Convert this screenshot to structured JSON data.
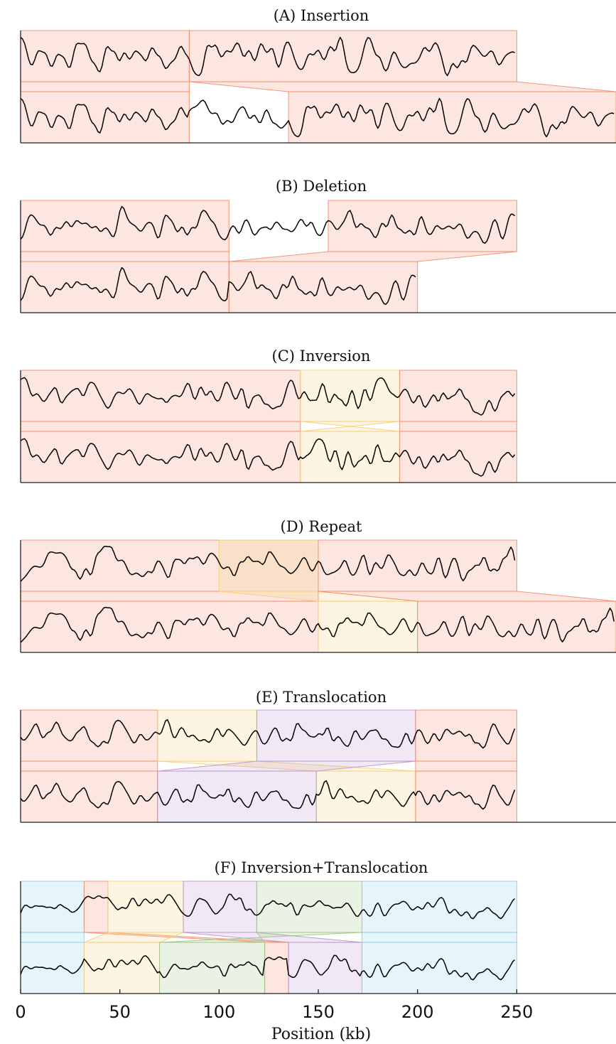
{
  "chart_data": {
    "type": "line",
    "xlabel": "Position (kb)",
    "xlim": [
      0,
      300
    ],
    "xticks": [
      0,
      50,
      100,
      150,
      200,
      250
    ],
    "colors": {
      "red": "#f08c6e",
      "yellow": "#f5cf78",
      "purple": "#b995cc",
      "green": "#9fc486",
      "blue": "#8ccbeb"
    },
    "panels": [
      {
        "title": "(A) Insertion",
        "reference_length_kb": 250,
        "query_length_kb": 300,
        "blocks": [
          {
            "color": "red",
            "ref": [
              0,
              85
            ],
            "query": [
              0,
              85
            ]
          },
          {
            "color": "red",
            "ref": [
              85,
              250
            ],
            "query": [
              135,
              300
            ]
          }
        ]
      },
      {
        "title": "(B) Deletion",
        "reference_length_kb": 250,
        "query_length_kb": 200,
        "blocks": [
          {
            "color": "red",
            "ref": [
              0,
              105
            ],
            "query": [
              0,
              105
            ]
          },
          {
            "color": "red",
            "ref": [
              155,
              250
            ],
            "query": [
              105,
              200
            ]
          }
        ]
      },
      {
        "title": "(C) Inversion",
        "reference_length_kb": 250,
        "query_length_kb": 250,
        "blocks": [
          {
            "color": "red",
            "ref": [
              0,
              141
            ],
            "query": [
              0,
              141
            ]
          },
          {
            "color": "yellow",
            "ref": [
              141,
              191
            ],
            "query": [
              141,
              191
            ],
            "inverted": true
          },
          {
            "color": "red",
            "ref": [
              191,
              250
            ],
            "query": [
              191,
              250
            ]
          }
        ]
      },
      {
        "title": "(D) Repeat",
        "reference_length_kb": 250,
        "query_length_kb": 300,
        "blocks": [
          {
            "color": "red",
            "ref": [
              0,
              150
            ],
            "query": [
              0,
              150
            ]
          },
          {
            "color": "yellow",
            "ref": [
              100,
              150
            ],
            "query": [
              150,
              200
            ]
          },
          {
            "color": "red",
            "ref": [
              150,
              250
            ],
            "query": [
              200,
              300
            ]
          }
        ]
      },
      {
        "title": "(E) Translocation",
        "reference_length_kb": 250,
        "query_length_kb": 250,
        "blocks": [
          {
            "color": "red",
            "ref": [
              0,
              69
            ],
            "query": [
              0,
              69
            ]
          },
          {
            "color": "yellow",
            "ref": [
              69,
              119
            ],
            "query": [
              149,
              199
            ]
          },
          {
            "color": "purple",
            "ref": [
              119,
              199
            ],
            "query": [
              69,
              149
            ]
          },
          {
            "color": "red",
            "ref": [
              199,
              250
            ],
            "query": [
              199,
              250
            ]
          }
        ]
      },
      {
        "title": "(F) Inversion+Translocation",
        "reference_length_kb": 250,
        "query_length_kb": 250,
        "blocks": [
          {
            "color": "blue",
            "ref": [
              0,
              32
            ],
            "query": [
              0,
              32
            ]
          },
          {
            "color": "red",
            "ref": [
              32,
              44
            ],
            "query": [
              123,
              135
            ]
          },
          {
            "color": "yellow",
            "ref": [
              44,
              82
            ],
            "query": [
              32,
              70
            ]
          },
          {
            "color": "purple",
            "ref": [
              82,
              119
            ],
            "query": [
              135,
              172
            ]
          },
          {
            "color": "green",
            "ref": [
              119,
              172
            ],
            "query": [
              70,
              123
            ],
            "inverted": true
          },
          {
            "color": "blue",
            "ref": [
              172,
              250
            ],
            "query": [
              172,
              250
            ]
          }
        ]
      }
    ]
  }
}
